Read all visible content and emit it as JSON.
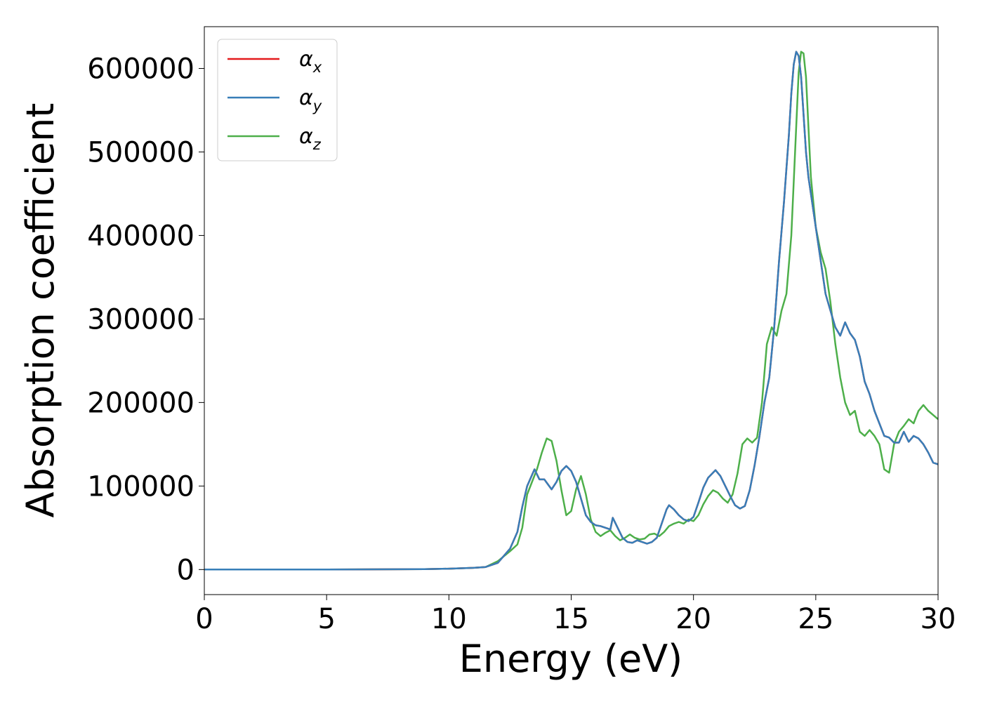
{
  "chart_data": {
    "type": "line",
    "title": "",
    "xlabel": "Energy (eV)",
    "ylabel": "Absorption coefficient",
    "xlim": [
      0,
      30
    ],
    "ylim": [
      -30000,
      650000
    ],
    "xticks": [
      0,
      5,
      10,
      15,
      20,
      25,
      30
    ],
    "xtick_labels": [
      "0",
      "5",
      "10",
      "15",
      "20",
      "25",
      "30"
    ],
    "yticks": [
      0,
      100000,
      200000,
      300000,
      400000,
      500000,
      600000
    ],
    "ytick_labels": [
      "0",
      "100000",
      "200000",
      "300000",
      "400000",
      "500000",
      "600000"
    ],
    "grid": false,
    "legend_position": "top-left",
    "series": [
      {
        "name": "α",
        "subscript": "x",
        "color": "#e41a1c",
        "x": [
          0,
          5,
          9,
          10,
          11,
          11.5,
          12,
          12.5,
          12.8,
          13.0,
          13.2,
          13.5,
          13.7,
          13.9,
          14.0,
          14.2,
          14.4,
          14.6,
          14.8,
          15.0,
          15.2,
          15.4,
          15.6,
          15.8,
          16.0,
          16.2,
          16.4,
          16.6,
          16.7,
          16.9,
          17.1,
          17.3,
          17.5,
          17.7,
          17.9,
          18.1,
          18.3,
          18.5,
          18.7,
          18.9,
          19.0,
          19.2,
          19.4,
          19.6,
          19.8,
          20.0,
          20.2,
          20.4,
          20.6,
          20.9,
          21.1,
          21.3,
          21.5,
          21.7,
          21.9,
          22.1,
          22.3,
          22.5,
          22.7,
          22.9,
          23.1,
          23.3,
          23.5,
          23.7,
          23.9,
          24.0,
          24.1,
          24.2,
          24.3,
          24.4,
          24.5,
          24.6,
          24.7,
          24.8,
          24.9,
          25.0,
          25.2,
          25.4,
          25.6,
          25.8,
          26.0,
          26.2,
          26.4,
          26.6,
          26.8,
          27.0,
          27.2,
          27.4,
          27.6,
          27.8,
          28.0,
          28.2,
          28.4,
          28.6,
          28.8,
          29.0,
          29.2,
          29.4,
          29.6,
          29.8,
          30.0
        ],
        "y": [
          0,
          0,
          500,
          1000,
          2000,
          3000,
          8000,
          25000,
          45000,
          75000,
          100000,
          120000,
          108000,
          108000,
          104000,
          96000,
          105000,
          118000,
          124000,
          118000,
          105000,
          85000,
          65000,
          57000,
          53000,
          52000,
          50000,
          48000,
          62000,
          50000,
          38000,
          33000,
          32000,
          35000,
          33000,
          31000,
          33000,
          38000,
          55000,
          72000,
          77000,
          72000,
          65000,
          60000,
          58000,
          63000,
          80000,
          98000,
          110000,
          119000,
          112000,
          100000,
          88000,
          77000,
          73000,
          76000,
          95000,
          125000,
          160000,
          200000,
          230000,
          290000,
          370000,
          440000,
          520000,
          570000,
          605000,
          620000,
          615000,
          590000,
          545000,
          500000,
          470000,
          450000,
          430000,
          410000,
          370000,
          330000,
          310000,
          290000,
          280000,
          296000,
          283000,
          275000,
          255000,
          225000,
          210000,
          190000,
          175000,
          160000,
          158000,
          152000,
          152000,
          165000,
          153000,
          160000,
          157000,
          150000,
          140000,
          128000,
          126000
        ]
      },
      {
        "name": "α",
        "subscript": "y",
        "color": "#377eb8",
        "x": [
          0,
          5,
          9,
          10,
          11,
          11.5,
          12,
          12.5,
          12.8,
          13.0,
          13.2,
          13.5,
          13.7,
          13.9,
          14.0,
          14.2,
          14.4,
          14.6,
          14.8,
          15.0,
          15.2,
          15.4,
          15.6,
          15.8,
          16.0,
          16.2,
          16.4,
          16.6,
          16.7,
          16.9,
          17.1,
          17.3,
          17.5,
          17.7,
          17.9,
          18.1,
          18.3,
          18.5,
          18.7,
          18.9,
          19.0,
          19.2,
          19.4,
          19.6,
          19.8,
          20.0,
          20.2,
          20.4,
          20.6,
          20.9,
          21.1,
          21.3,
          21.5,
          21.7,
          21.9,
          22.1,
          22.3,
          22.5,
          22.7,
          22.9,
          23.1,
          23.3,
          23.5,
          23.7,
          23.9,
          24.0,
          24.1,
          24.2,
          24.3,
          24.4,
          24.5,
          24.6,
          24.7,
          24.8,
          24.9,
          25.0,
          25.2,
          25.4,
          25.6,
          25.8,
          26.0,
          26.2,
          26.4,
          26.6,
          26.8,
          27.0,
          27.2,
          27.4,
          27.6,
          27.8,
          28.0,
          28.2,
          28.4,
          28.6,
          28.8,
          29.0,
          29.2,
          29.4,
          29.6,
          29.8,
          30.0
        ],
        "y": [
          0,
          0,
          500,
          1000,
          2000,
          3000,
          8000,
          25000,
          45000,
          75000,
          100000,
          120000,
          108000,
          108000,
          104000,
          96000,
          105000,
          118000,
          124000,
          118000,
          105000,
          85000,
          65000,
          57000,
          53000,
          52000,
          50000,
          48000,
          62000,
          50000,
          38000,
          33000,
          32000,
          35000,
          33000,
          31000,
          33000,
          38000,
          55000,
          72000,
          77000,
          72000,
          65000,
          60000,
          58000,
          63000,
          80000,
          98000,
          110000,
          119000,
          112000,
          100000,
          88000,
          77000,
          73000,
          76000,
          95000,
          125000,
          160000,
          200000,
          230000,
          290000,
          370000,
          440000,
          520000,
          570000,
          605000,
          620000,
          615000,
          590000,
          545000,
          500000,
          470000,
          450000,
          430000,
          410000,
          370000,
          330000,
          310000,
          290000,
          280000,
          296000,
          283000,
          275000,
          255000,
          225000,
          210000,
          190000,
          175000,
          160000,
          158000,
          152000,
          152000,
          165000,
          153000,
          160000,
          157000,
          150000,
          140000,
          128000,
          126000
        ]
      },
      {
        "name": "α",
        "subscript": "z",
        "color": "#4daf4a",
        "x": [
          0,
          5,
          9,
          10,
          11,
          11.5,
          12,
          12.5,
          12.8,
          13.0,
          13.2,
          13.4,
          13.6,
          13.8,
          14.0,
          14.2,
          14.4,
          14.6,
          14.8,
          15.0,
          15.2,
          15.4,
          15.6,
          15.8,
          16.0,
          16.2,
          16.4,
          16.6,
          16.8,
          17.0,
          17.2,
          17.4,
          17.6,
          17.8,
          18.0,
          18.2,
          18.4,
          18.6,
          18.8,
          19.0,
          19.2,
          19.4,
          19.6,
          19.8,
          20.0,
          20.2,
          20.4,
          20.6,
          20.8,
          21.0,
          21.2,
          21.4,
          21.6,
          21.8,
          22.0,
          22.2,
          22.4,
          22.6,
          22.8,
          23.0,
          23.2,
          23.4,
          23.6,
          23.8,
          24.0,
          24.2,
          24.3,
          24.4,
          24.5,
          24.6,
          24.7,
          24.8,
          24.9,
          25.0,
          25.2,
          25.4,
          25.6,
          25.8,
          26.0,
          26.2,
          26.4,
          26.6,
          26.8,
          27.0,
          27.2,
          27.4,
          27.6,
          27.8,
          28.0,
          28.2,
          28.4,
          28.6,
          28.8,
          29.0,
          29.2,
          29.4,
          29.6,
          29.8,
          30.0
        ],
        "y": [
          0,
          0,
          500,
          1000,
          2000,
          3000,
          10000,
          22000,
          30000,
          50000,
          90000,
          105000,
          120000,
          140000,
          157000,
          154000,
          130000,
          95000,
          65000,
          70000,
          96000,
          112000,
          90000,
          60000,
          45000,
          40000,
          44000,
          47000,
          40000,
          35000,
          38000,
          42000,
          38000,
          36000,
          37000,
          42000,
          43000,
          40000,
          45000,
          52000,
          55000,
          57000,
          55000,
          60000,
          58000,
          65000,
          78000,
          88000,
          95000,
          92000,
          85000,
          80000,
          90000,
          115000,
          150000,
          157000,
          152000,
          158000,
          200000,
          270000,
          290000,
          280000,
          310000,
          330000,
          400000,
          530000,
          595000,
          620000,
          618000,
          590000,
          530000,
          470000,
          440000,
          410000,
          380000,
          360000,
          320000,
          270000,
          230000,
          200000,
          185000,
          190000,
          165000,
          160000,
          167000,
          160000,
          150000,
          120000,
          116000,
          150000,
          165000,
          172000,
          180000,
          175000,
          190000,
          197000,
          190000,
          185000,
          180000
        ]
      }
    ]
  }
}
